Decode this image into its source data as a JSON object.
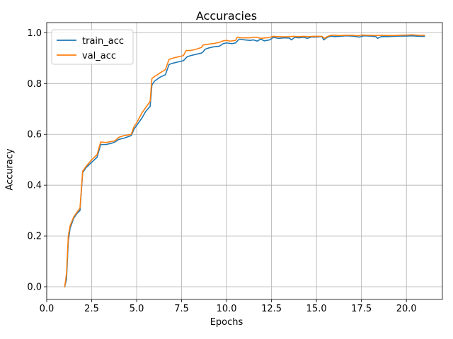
{
  "colors": {
    "train_acc": "#1f77b4",
    "val_acc": "#ff7f0e",
    "grid": "#b0b0b0",
    "axes": "#000000"
  },
  "chart_data": {
    "type": "line",
    "title": "Accuracies",
    "xlabel": "Epochs",
    "ylabel": "Accuracy",
    "xlim": [
      0.0,
      22.0
    ],
    "ylim": [
      -0.05,
      1.04
    ],
    "grid": true,
    "legend_position": "upper-left",
    "x_ticks": [
      0.0,
      2.5,
      5.0,
      7.5,
      10.0,
      12.5,
      15.0,
      17.5,
      20.0
    ],
    "x_tick_labels": [
      "0.0",
      "2.5",
      "5.0",
      "7.5",
      "10.0",
      "12.5",
      "15.0",
      "17.5",
      "20.0"
    ],
    "y_ticks": [
      0.0,
      0.2,
      0.4,
      0.6,
      0.8,
      1.0
    ],
    "y_tick_labels": [
      "0.0",
      "0.2",
      "0.4",
      "0.6",
      "0.8",
      "1.0"
    ],
    "series": [
      {
        "name": "train_acc",
        "points": [
          [
            1.0,
            0.0
          ],
          [
            1.1,
            0.03
          ],
          [
            1.2,
            0.18
          ],
          [
            1.3,
            0.23
          ],
          [
            1.5,
            0.27
          ],
          [
            1.7,
            0.29
          ],
          [
            1.85,
            0.3
          ],
          [
            2.0,
            0.45
          ],
          [
            2.2,
            0.47
          ],
          [
            2.5,
            0.49
          ],
          [
            2.8,
            0.51
          ],
          [
            3.0,
            0.56
          ],
          [
            3.3,
            0.56
          ],
          [
            3.6,
            0.565
          ],
          [
            3.8,
            0.57
          ],
          [
            4.0,
            0.58
          ],
          [
            4.3,
            0.585
          ],
          [
            4.7,
            0.595
          ],
          [
            4.85,
            0.62
          ],
          [
            5.0,
            0.635
          ],
          [
            5.3,
            0.665
          ],
          [
            5.5,
            0.69
          ],
          [
            5.75,
            0.71
          ],
          [
            5.85,
            0.795
          ],
          [
            6.0,
            0.81
          ],
          [
            6.3,
            0.825
          ],
          [
            6.6,
            0.835
          ],
          [
            6.8,
            0.875
          ],
          [
            7.0,
            0.88
          ],
          [
            7.3,
            0.885
          ],
          [
            7.6,
            0.89
          ],
          [
            7.8,
            0.905
          ],
          [
            8.0,
            0.91
          ],
          [
            8.3,
            0.915
          ],
          [
            8.6,
            0.92
          ],
          [
            8.7,
            0.925
          ],
          [
            8.8,
            0.935
          ],
          [
            9.0,
            0.94
          ],
          [
            9.3,
            0.945
          ],
          [
            9.6,
            0.947
          ],
          [
            9.8,
            0.957
          ],
          [
            10.0,
            0.96
          ],
          [
            10.2,
            0.958
          ],
          [
            10.3,
            0.957
          ],
          [
            10.5,
            0.96
          ],
          [
            10.7,
            0.975
          ],
          [
            11.0,
            0.972
          ],
          [
            11.3,
            0.97
          ],
          [
            11.5,
            0.972
          ],
          [
            11.7,
            0.967
          ],
          [
            11.9,
            0.975
          ],
          [
            12.1,
            0.968
          ],
          [
            12.4,
            0.972
          ],
          [
            12.6,
            0.982
          ],
          [
            12.9,
            0.978
          ],
          [
            13.2,
            0.98
          ],
          [
            13.5,
            0.979
          ],
          [
            13.6,
            0.972
          ],
          [
            13.8,
            0.982
          ],
          [
            14.0,
            0.98
          ],
          [
            14.3,
            0.982
          ],
          [
            14.5,
            0.978
          ],
          [
            14.7,
            0.983
          ],
          [
            15.0,
            0.983
          ],
          [
            15.3,
            0.985
          ],
          [
            15.4,
            0.972
          ],
          [
            15.6,
            0.982
          ],
          [
            15.8,
            0.987
          ],
          [
            16.0,
            0.985
          ],
          [
            16.3,
            0.986
          ],
          [
            16.6,
            0.988
          ],
          [
            17.0,
            0.987
          ],
          [
            17.2,
            0.985
          ],
          [
            17.4,
            0.983
          ],
          [
            17.6,
            0.988
          ],
          [
            18.0,
            0.987
          ],
          [
            18.3,
            0.985
          ],
          [
            18.4,
            0.978
          ],
          [
            18.6,
            0.985
          ],
          [
            19.0,
            0.985
          ],
          [
            19.3,
            0.986
          ],
          [
            19.6,
            0.987
          ],
          [
            20.0,
            0.987
          ],
          [
            20.3,
            0.988
          ],
          [
            20.7,
            0.986
          ],
          [
            21.0,
            0.986
          ]
        ]
      },
      {
        "name": "val_acc",
        "points": [
          [
            1.0,
            0.0
          ],
          [
            1.1,
            0.05
          ],
          [
            1.2,
            0.2
          ],
          [
            1.3,
            0.24
          ],
          [
            1.5,
            0.275
          ],
          [
            1.7,
            0.295
          ],
          [
            1.85,
            0.31
          ],
          [
            2.0,
            0.455
          ],
          [
            2.2,
            0.475
          ],
          [
            2.5,
            0.5
          ],
          [
            2.8,
            0.52
          ],
          [
            3.0,
            0.57
          ],
          [
            3.3,
            0.568
          ],
          [
            3.6,
            0.572
          ],
          [
            3.8,
            0.575
          ],
          [
            4.0,
            0.588
          ],
          [
            4.3,
            0.595
          ],
          [
            4.7,
            0.6
          ],
          [
            4.85,
            0.63
          ],
          [
            5.0,
            0.645
          ],
          [
            5.3,
            0.685
          ],
          [
            5.5,
            0.705
          ],
          [
            5.75,
            0.73
          ],
          [
            5.85,
            0.82
          ],
          [
            6.0,
            0.828
          ],
          [
            6.3,
            0.842
          ],
          [
            6.6,
            0.855
          ],
          [
            6.8,
            0.895
          ],
          [
            7.0,
            0.9
          ],
          [
            7.3,
            0.905
          ],
          [
            7.6,
            0.91
          ],
          [
            7.75,
            0.93
          ],
          [
            8.0,
            0.93
          ],
          [
            8.3,
            0.935
          ],
          [
            8.6,
            0.942
          ],
          [
            8.7,
            0.952
          ],
          [
            9.0,
            0.955
          ],
          [
            9.3,
            0.958
          ],
          [
            9.6,
            0.962
          ],
          [
            9.8,
            0.968
          ],
          [
            10.0,
            0.97
          ],
          [
            10.2,
            0.967
          ],
          [
            10.5,
            0.97
          ],
          [
            10.6,
            0.983
          ],
          [
            10.8,
            0.98
          ],
          [
            11.0,
            0.98
          ],
          [
            11.3,
            0.98
          ],
          [
            11.5,
            0.982
          ],
          [
            11.7,
            0.982
          ],
          [
            11.9,
            0.978
          ],
          [
            12.2,
            0.98
          ],
          [
            12.4,
            0.982
          ],
          [
            12.6,
            0.986
          ],
          [
            12.9,
            0.985
          ],
          [
            13.2,
            0.984
          ],
          [
            13.5,
            0.985
          ],
          [
            13.7,
            0.986
          ],
          [
            14.0,
            0.985
          ],
          [
            14.3,
            0.986
          ],
          [
            14.6,
            0.985
          ],
          [
            14.8,
            0.986
          ],
          [
            15.0,
            0.986
          ],
          [
            15.3,
            0.986
          ],
          [
            15.45,
            0.978
          ],
          [
            15.6,
            0.985
          ],
          [
            15.8,
            0.99
          ],
          [
            16.0,
            0.99
          ],
          [
            16.3,
            0.989
          ],
          [
            16.6,
            0.99
          ],
          [
            17.0,
            0.99
          ],
          [
            17.3,
            0.988
          ],
          [
            17.5,
            0.991
          ],
          [
            17.8,
            0.99
          ],
          [
            18.0,
            0.99
          ],
          [
            18.3,
            0.989
          ],
          [
            18.6,
            0.99
          ],
          [
            19.0,
            0.989
          ],
          [
            19.3,
            0.989
          ],
          [
            19.6,
            0.99
          ],
          [
            20.0,
            0.991
          ],
          [
            20.3,
            0.992
          ],
          [
            20.7,
            0.99
          ],
          [
            21.0,
            0.99
          ]
        ]
      }
    ]
  }
}
